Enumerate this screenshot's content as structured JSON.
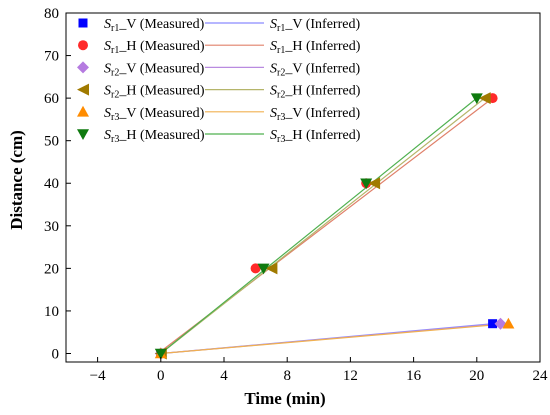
{
  "chart_data": {
    "type": "scatter",
    "xlabel": "Time (min)",
    "ylabel": "Distance (cm)",
    "xlim": [
      -6,
      24
    ],
    "ylim": [
      -2,
      80
    ],
    "xticks": [
      -4,
      0,
      4,
      8,
      12,
      16,
      20,
      24
    ],
    "yticks": [
      0,
      10,
      20,
      30,
      40,
      50,
      60,
      70,
      80
    ],
    "grid": false,
    "legend": {
      "placement": "top-left",
      "columns": 2
    },
    "series": [
      {
        "name": "Sr1_V (Measured)",
        "label_main": "S",
        "label_sub": "r1",
        "label_rest": "_V (Measured)",
        "kind": "measured",
        "marker": "square",
        "color": "#0000ff",
        "x": [
          0,
          21
        ],
        "y": [
          0,
          7
        ]
      },
      {
        "name": "Sr1_V (Inferred)",
        "label_main": "S",
        "label_sub": "r1",
        "label_rest": "_V (Inferred)",
        "kind": "inferred",
        "color": "#8a8aff",
        "x": [
          0,
          21
        ],
        "y": [
          0,
          7
        ]
      },
      {
        "name": "Sr1_H (Measured)",
        "label_main": "S",
        "label_sub": "r1",
        "label_rest": "_H (Measured)",
        "kind": "measured",
        "marker": "circle",
        "color": "#ff2a2a",
        "x": [
          0,
          6,
          13,
          21
        ],
        "y": [
          0,
          20,
          40,
          60
        ]
      },
      {
        "name": "Sr1_H (Inferred)",
        "label_main": "S",
        "label_sub": "r1",
        "label_rest": "_H (Inferred)",
        "kind": "inferred",
        "color": "#e0806a",
        "x": [
          0,
          21
        ],
        "y": [
          0.5,
          60
        ]
      },
      {
        "name": "Sr2_V (Measured)",
        "label_main": "S",
        "label_sub": "r2",
        "label_rest": "_V (Measured)",
        "kind": "measured",
        "marker": "diamond",
        "color": "#b57be0",
        "x": [
          0,
          21.5
        ],
        "y": [
          0,
          7
        ]
      },
      {
        "name": "Sr2_V (Inferred)",
        "label_main": "S",
        "label_sub": "r2",
        "label_rest": "_V (Inferred)",
        "kind": "inferred",
        "color": "#b98be0",
        "x": [
          0,
          21.5
        ],
        "y": [
          0,
          7
        ]
      },
      {
        "name": "Sr2_H (Measured)",
        "label_main": "S",
        "label_sub": "r2",
        "label_rest": "_H (Measured)",
        "kind": "measured",
        "marker": "triangle-left",
        "color": "#a07a00",
        "x": [
          0,
          7,
          13.5,
          20.5
        ],
        "y": [
          0,
          20,
          40,
          60
        ]
      },
      {
        "name": "Sr2_H (Inferred)",
        "label_main": "S",
        "label_sub": "r2",
        "label_rest": "_H (Inferred)",
        "kind": "inferred",
        "color": "#b5b56a",
        "x": [
          0,
          20.5
        ],
        "y": [
          0,
          60
        ]
      },
      {
        "name": "Sr3_V (Measured)",
        "label_main": "S",
        "label_sub": "r3",
        "label_rest": "_V (Measured)",
        "kind": "measured",
        "marker": "triangle-up",
        "color": "#ff8c00",
        "x": [
          0,
          22
        ],
        "y": [
          0,
          7
        ]
      },
      {
        "name": "Sr3_V (Inferred)",
        "label_main": "S",
        "label_sub": "r3",
        "label_rest": "_V (Inferred)",
        "kind": "inferred",
        "color": "#f0b050",
        "x": [
          0,
          22
        ],
        "y": [
          0,
          7
        ]
      },
      {
        "name": "Sr3_H (Measured)",
        "label_main": "S",
        "label_sub": "r3",
        "label_rest": "_H (Measured)",
        "kind": "measured",
        "marker": "triangle-down",
        "color": "#0f7a0f",
        "x": [
          0,
          6.5,
          13,
          20
        ],
        "y": [
          0,
          20,
          40,
          60
        ]
      },
      {
        "name": "Sr3_H (Inferred)",
        "label_main": "S",
        "label_sub": "r3",
        "label_rest": "_H (Inferred)",
        "kind": "inferred",
        "color": "#4fb04f",
        "x": [
          0,
          20
        ],
        "y": [
          0,
          60
        ]
      }
    ]
  }
}
